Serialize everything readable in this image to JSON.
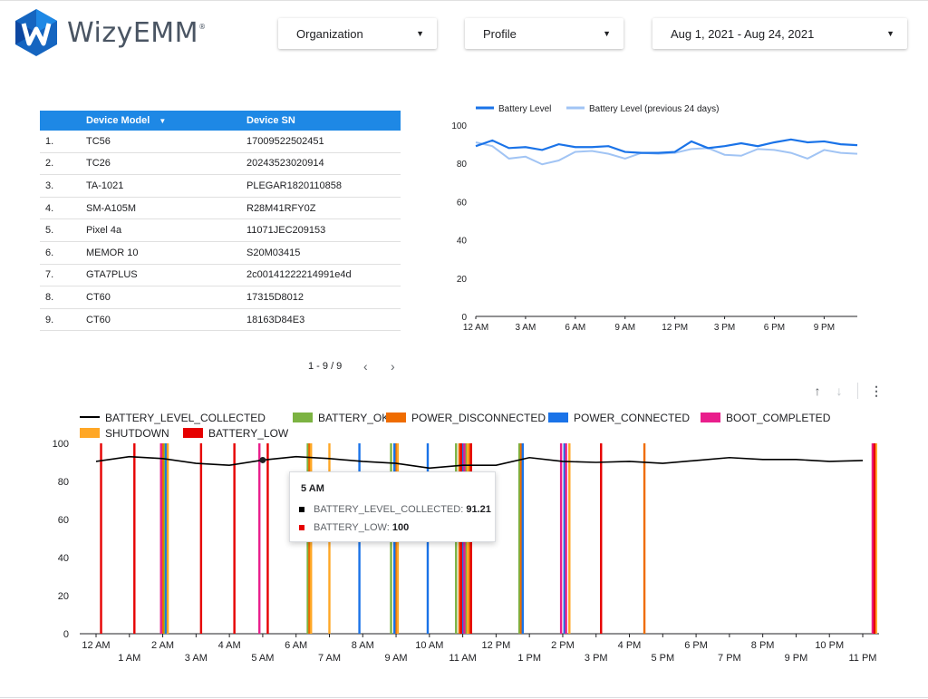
{
  "header": {
    "brand": "WizyEMM",
    "brand_mark": "®",
    "filters": {
      "organization": "Organization",
      "profile": "Profile",
      "date_range": "Aug 1, 2021 - Aug 24, 2021"
    }
  },
  "devices_table": {
    "columns": [
      "Device Model",
      "Device SN"
    ],
    "rows": [
      {
        "n": "1.",
        "model": "TC56",
        "sn": "17009522502451"
      },
      {
        "n": "2.",
        "model": "TC26",
        "sn": "20243523020914"
      },
      {
        "n": "3.",
        "model": "TA-1021",
        "sn": "PLEGAR1820110858"
      },
      {
        "n": "4.",
        "model": "SM-A105M",
        "sn": "R28M41RFY0Z"
      },
      {
        "n": "5.",
        "model": "Pixel 4a",
        "sn": "11071JEC209153"
      },
      {
        "n": "6.",
        "model": "MEMOR 10",
        "sn": "S20M03415"
      },
      {
        "n": "7.",
        "model": "GTA7PLUS",
        "sn": "2c00141222214991e4d"
      },
      {
        "n": "8.",
        "model": "CT60",
        "sn": "17315D8012"
      },
      {
        "n": "9.",
        "model": "CT60",
        "sn": "18163D84E3"
      }
    ],
    "pagination": "1 - 9 / 9"
  },
  "chart_data": [
    {
      "type": "line",
      "x": [
        "12 AM",
        "1 AM",
        "2 AM",
        "3 AM",
        "4 AM",
        "5 AM",
        "6 AM",
        "7 AM",
        "8 AM",
        "9 AM",
        "10 AM",
        "11 AM",
        "12 PM",
        "1 PM",
        "2 PM",
        "3 PM",
        "4 PM",
        "5 PM",
        "6 PM",
        "7 PM",
        "8 PM",
        "9 PM",
        "10 PM",
        "11 PM"
      ],
      "x_tick_labels": [
        "12 AM",
        "3 AM",
        "6 AM",
        "9 AM",
        "12 PM",
        "3 PM",
        "6 PM",
        "9 PM"
      ],
      "ylim": [
        0,
        100
      ],
      "y_ticks": [
        0,
        20,
        40,
        60,
        80,
        100
      ],
      "legend_position": "top-left",
      "series": [
        {
          "name": "Battery Level",
          "color": "#1a73e8",
          "values": [
            89,
            92,
            88,
            88.5,
            87,
            90,
            88.5,
            88.5,
            89,
            86,
            85.5,
            85.5,
            86,
            91.5,
            88,
            89,
            90.5,
            89,
            91,
            92.5,
            91,
            91.5,
            90,
            89.5
          ]
        },
        {
          "name": "Battery Level (previous 24 days)",
          "color": "#a1c4f4",
          "values": [
            91,
            89,
            82.5,
            83.5,
            79.5,
            81.5,
            86,
            86.5,
            85,
            82.5,
            85.5,
            85,
            85.5,
            87.5,
            88,
            84.5,
            84,
            87.5,
            87,
            85.5,
            82.5,
            87,
            85.5,
            85
          ]
        }
      ]
    },
    {
      "type": "bar",
      "x": [
        "12 AM",
        "1 AM",
        "2 AM",
        "3 AM",
        "4 AM",
        "5 AM",
        "6 AM",
        "7 AM",
        "8 AM",
        "9 AM",
        "10 AM",
        "11 AM",
        "12 PM",
        "1 PM",
        "2 PM",
        "3 PM",
        "4 PM",
        "5 PM",
        "6 PM",
        "7 PM",
        "8 PM",
        "9 PM",
        "10 PM",
        "11 PM"
      ],
      "ylim": [
        0,
        100
      ],
      "y_ticks": [
        0,
        20,
        40,
        60,
        80,
        100
      ],
      "legend_position": "top-left",
      "series": [
        {
          "name": "BATTERY_LEVEL_COLLECTED",
          "type": "line",
          "color": "#000000",
          "values": [
            90.5,
            93,
            92,
            89.5,
            88.5,
            91.21,
            93,
            92,
            90.5,
            89.5,
            87,
            88.5,
            88.5,
            92.5,
            90.5,
            90,
            90.5,
            89.5,
            91,
            92.5,
            91.5,
            91.5,
            90.5,
            91
          ]
        },
        {
          "name": "BATTERY_OKAY",
          "type": "event",
          "color": "#7cb342",
          "value": 100,
          "events": [
            2.05,
            6.35,
            8.85,
            10.8,
            11.1,
            12.7
          ]
        },
        {
          "name": "POWER_DISCONNECTED",
          "type": "event",
          "color": "#ef6c00",
          "value": 100,
          "events": [
            2.0,
            6.4,
            9.0,
            10.9,
            11.2,
            12.75,
            16.45,
            23.3
          ]
        },
        {
          "name": "POWER_CONNECTED",
          "type": "event",
          "color": "#1a73e8",
          "value": 100,
          "events": [
            2.1,
            7.9,
            8.95,
            9.95,
            11.0,
            12.8,
            14.05
          ]
        },
        {
          "name": "BOOT_COMPLETED",
          "type": "event",
          "color": "#e91e8c",
          "value": 100,
          "events": [
            1.95,
            4.9,
            11.05,
            13.95,
            14.1,
            23.3
          ]
        },
        {
          "name": "SHUTDOWN",
          "type": "event",
          "color": "#ffa726",
          "value": 100,
          "events": [
            2.15,
            6.45,
            7.0,
            9.05,
            11.15,
            14.2,
            23.4
          ]
        },
        {
          "name": "BATTERY_LOW",
          "type": "event",
          "color": "#e60000",
          "value": 100,
          "events": [
            0.15,
            1.15,
            3.15,
            4.15,
            5.15,
            10.95,
            11.25,
            15.15,
            23.35
          ]
        }
      ],
      "tooltip": {
        "title": "5 AM",
        "rows": [
          {
            "label": "BATTERY_LEVEL_COLLECTED",
            "value": "91.21",
            "color": "#000000"
          },
          {
            "label": "BATTERY_LOW",
            "value": "100",
            "color": "#e60000"
          }
        ]
      }
    }
  ]
}
